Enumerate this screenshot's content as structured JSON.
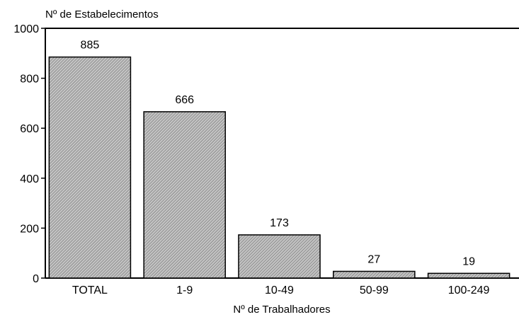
{
  "chart_data": {
    "type": "bar",
    "categories": [
      "TOTAL",
      "1-9",
      "10-49",
      "50-99",
      "100-249"
    ],
    "values": [
      885,
      666,
      173,
      27,
      19
    ],
    "data_labels": [
      "885",
      "666",
      "173",
      "27",
      "19"
    ],
    "ylabel": "Nº de Estabelecimentos",
    "xlabel": "Nº de Trabalhadores",
    "ylim": [
      0,
      1000
    ],
    "yticks": [
      0,
      200,
      400,
      600,
      800,
      1000
    ],
    "ytick_labels": [
      "0",
      "200",
      "400",
      "600",
      "800",
      "1000"
    ],
    "grid": false,
    "legend": "none",
    "bar_fill": "#a8a8a8",
    "bar_pattern": "diagonal-hatch",
    "axis_color": "#000000"
  }
}
